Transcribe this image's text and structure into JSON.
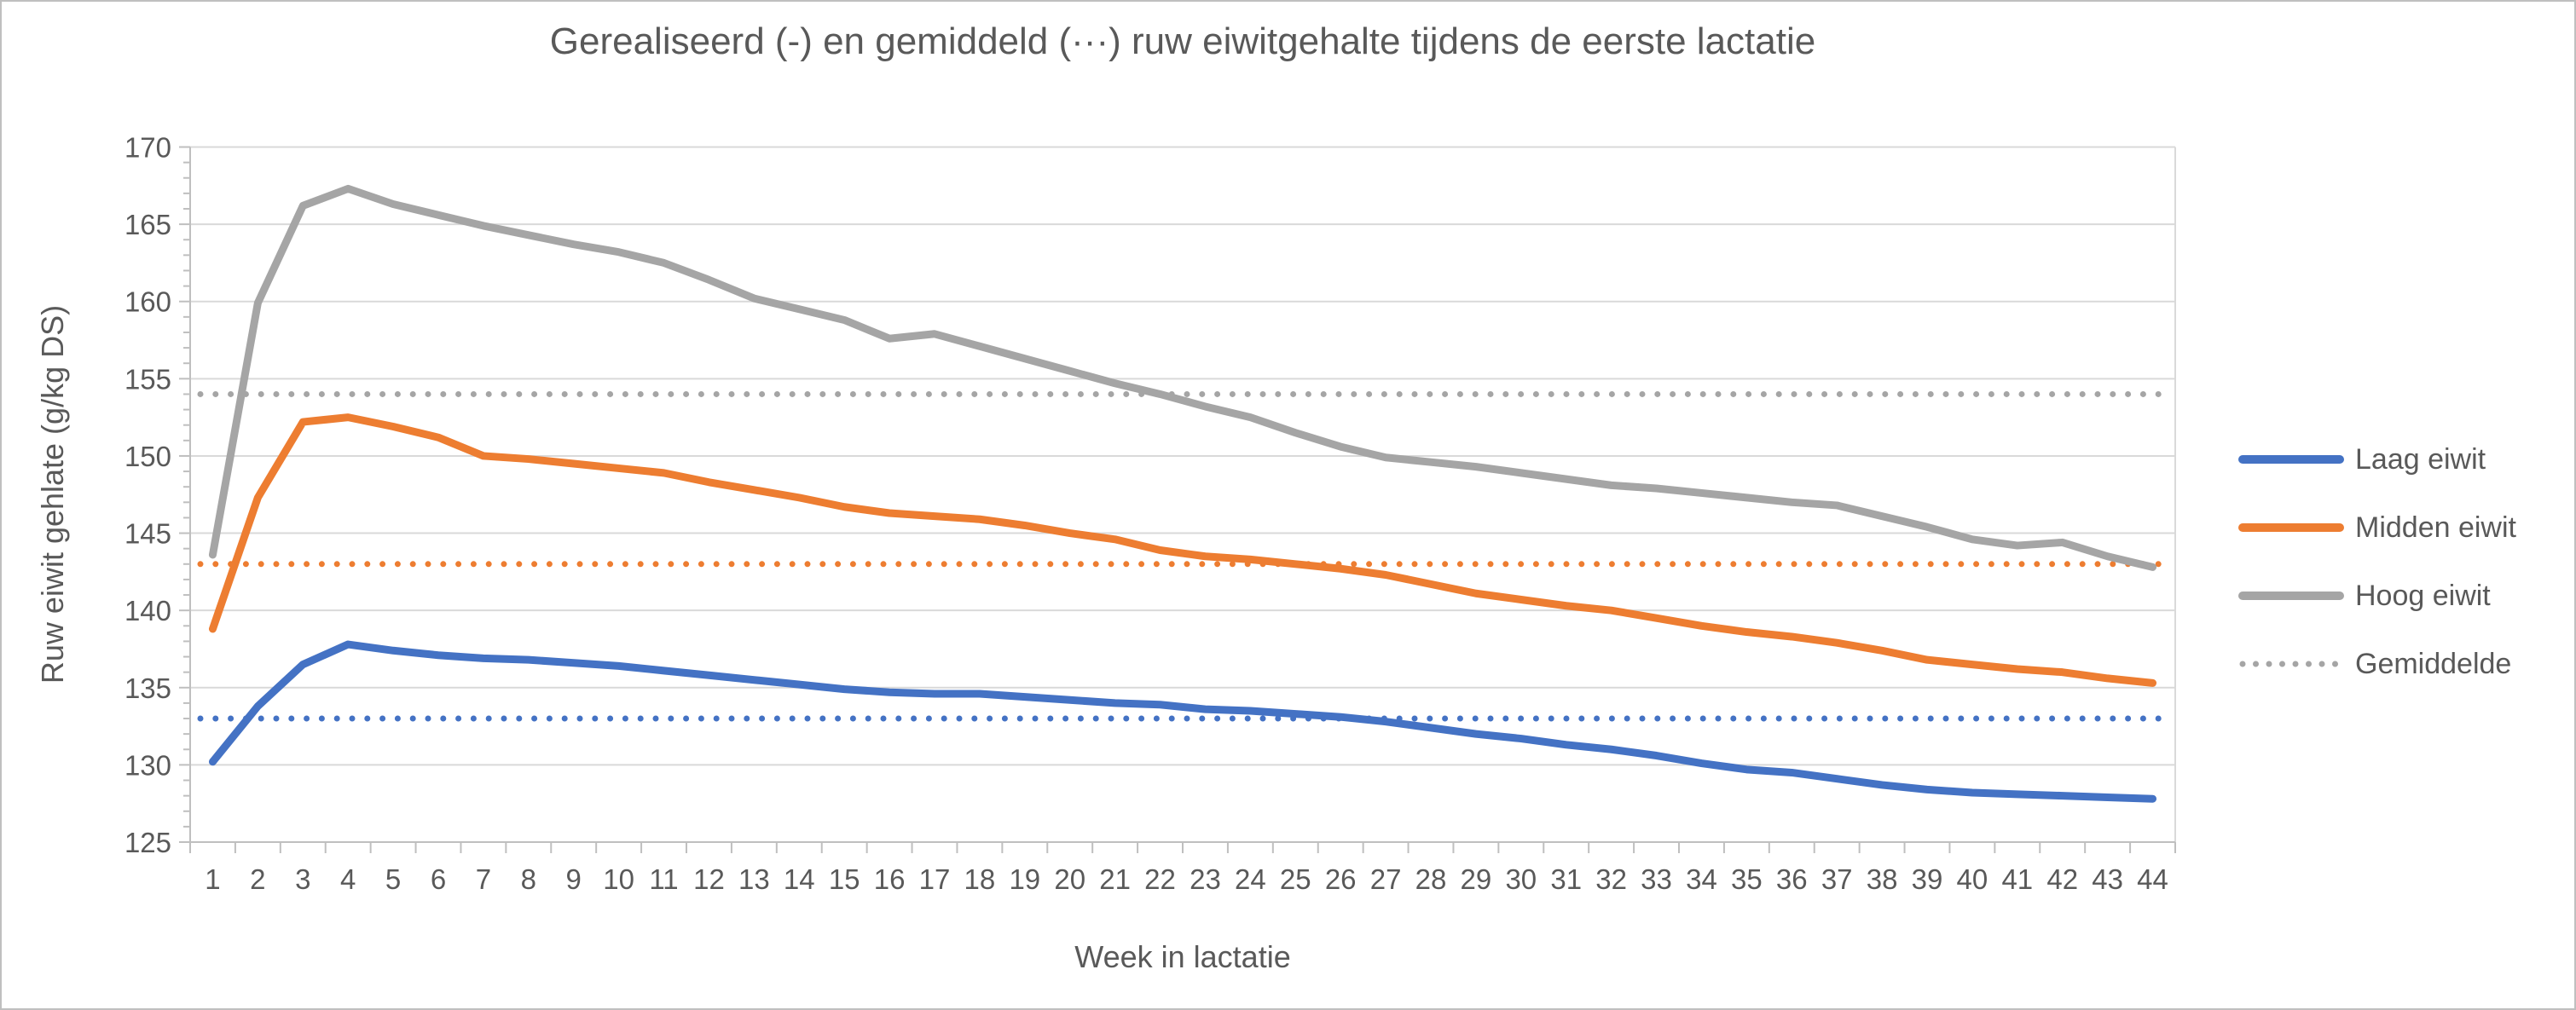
{
  "chart": {
    "title": "Gerealiseerd (-) en gemiddeld (···) ruw eiwitgehalte tijdens de eerste lactatie",
    "x_axis": {
      "title": "Week in lactatie"
    },
    "y_axis": {
      "title": "Ruw eiwit gehlate (g/kg DS)"
    },
    "legend": {
      "items": [
        {
          "label": "Laag eiwit",
          "color": "#4472C4",
          "style": "solid"
        },
        {
          "label": "Midden eiwit",
          "color": "#ED7D31",
          "style": "solid"
        },
        {
          "label": "Hoog eiwit",
          "color": "#A5A5A5",
          "style": "solid"
        },
        {
          "label": "Gemiddelde",
          "color": "#A5A5A5",
          "style": "dotted"
        }
      ]
    }
  },
  "chart_data": {
    "type": "line",
    "title": "Gerealiseerd (-) en gemiddeld (···) ruw eiwitgehalte tijdens de eerste lactatie",
    "xlabel": "Week in lactatie",
    "ylabel": "Ruw eiwit gehlate (g/kg DS)",
    "x": [
      1,
      2,
      3,
      4,
      5,
      6,
      7,
      8,
      9,
      10,
      11,
      12,
      13,
      14,
      15,
      16,
      17,
      18,
      19,
      20,
      21,
      22,
      23,
      24,
      25,
      26,
      27,
      28,
      29,
      30,
      31,
      32,
      33,
      34,
      35,
      36,
      37,
      38,
      39,
      40,
      41,
      42,
      43,
      44
    ],
    "x_tick_labels": [
      "1",
      "2",
      "3",
      "4",
      "5",
      "6",
      "7",
      "8",
      "9",
      "10",
      "11",
      "12",
      "13",
      "14",
      "15",
      "16",
      "17",
      "18",
      "19",
      "20",
      "21",
      "22",
      "23",
      "24",
      "25",
      "26",
      "27",
      "28",
      "29",
      "30",
      "31",
      "32",
      "33",
      "34",
      "35",
      "36",
      "37",
      "38",
      "39",
      "40",
      "41",
      "42",
      "43",
      "44"
    ],
    "ylim": [
      125,
      170
    ],
    "y_ticks": [
      125,
      130,
      135,
      140,
      145,
      150,
      155,
      160,
      165,
      170
    ],
    "y_minor_tick_step": 1,
    "grid": true,
    "legend_position": "right",
    "palette": {
      "grid": "#D9D9D9",
      "axis": "#BFBFBF",
      "text": "#595959"
    },
    "series": [
      {
        "name": "Laag eiwit",
        "color": "#4472C4",
        "style": "solid",
        "values": [
          130.2,
          133.8,
          136.5,
          137.8,
          137.4,
          137.1,
          136.9,
          136.8,
          136.6,
          136.4,
          136.1,
          135.8,
          135.5,
          135.2,
          134.9,
          134.7,
          134.6,
          134.6,
          134.4,
          134.2,
          134.0,
          133.9,
          133.6,
          133.5,
          133.3,
          133.1,
          132.8,
          132.4,
          132.0,
          131.7,
          131.3,
          131.0,
          130.6,
          130.1,
          129.7,
          129.5,
          129.1,
          128.7,
          128.4,
          128.2,
          128.1,
          128.0,
          127.9,
          127.8
        ]
      },
      {
        "name": "Midden eiwit",
        "color": "#ED7D31",
        "style": "solid",
        "values": [
          138.8,
          147.3,
          152.2,
          152.5,
          151.9,
          151.2,
          150.0,
          149.8,
          149.5,
          149.2,
          148.9,
          148.3,
          147.8,
          147.3,
          146.7,
          146.3,
          146.1,
          145.9,
          145.5,
          145.0,
          144.6,
          143.9,
          143.5,
          143.3,
          143.0,
          142.7,
          142.3,
          141.7,
          141.1,
          140.7,
          140.3,
          140.0,
          139.5,
          139.0,
          138.6,
          138.3,
          137.9,
          137.4,
          136.8,
          136.5,
          136.2,
          136.0,
          135.6,
          135.3
        ]
      },
      {
        "name": "Hoog eiwit",
        "color": "#A5A5A5",
        "style": "solid",
        "values": [
          143.6,
          159.9,
          166.2,
          167.3,
          166.3,
          165.6,
          164.9,
          164.3,
          163.7,
          163.2,
          162.5,
          161.4,
          160.2,
          159.5,
          158.8,
          157.6,
          157.9,
          157.1,
          156.3,
          155.5,
          154.7,
          154.0,
          153.2,
          152.5,
          151.5,
          150.6,
          149.9,
          149.6,
          149.3,
          148.9,
          148.5,
          148.1,
          147.9,
          147.6,
          147.3,
          147.0,
          146.8,
          146.1,
          145.4,
          144.6,
          144.2,
          144.4,
          143.5,
          142.8
        ]
      },
      {
        "name": "Gemiddelde Laag eiwit",
        "color": "#4472C4",
        "style": "dotted",
        "value": 133
      },
      {
        "name": "Gemiddelde Midden eiwit",
        "color": "#ED7D31",
        "style": "dotted",
        "value": 143
      },
      {
        "name": "Gemiddelde Hoog eiwit",
        "color": "#A5A5A5",
        "style": "dotted",
        "value": 154
      }
    ]
  }
}
